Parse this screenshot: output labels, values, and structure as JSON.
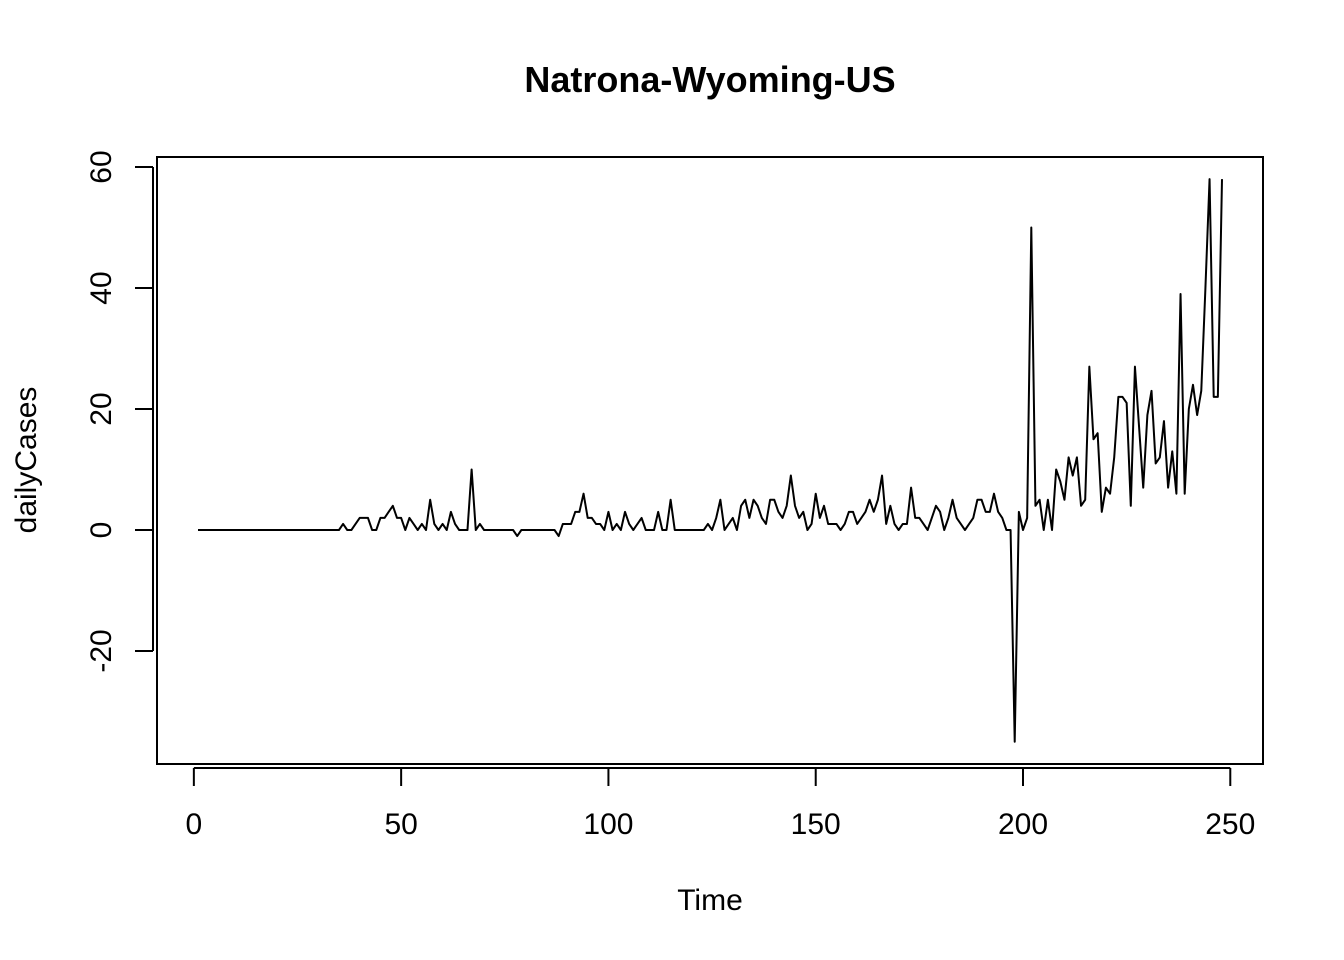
{
  "chart_data": {
    "type": "line",
    "title": "Natrona-Wyoming-US",
    "xlabel": "Time",
    "ylabel": "dailyCases",
    "xlim": [
      1,
      248
    ],
    "ylim": [
      -35,
      58
    ],
    "x_ticks": [
      0,
      50,
      100,
      150,
      200,
      250
    ],
    "y_ticks": [
      -20,
      0,
      20,
      40,
      60
    ],
    "grid": false,
    "legend": "none",
    "series": [
      {
        "start_x": 1,
        "values": [
          0,
          0,
          0,
          0,
          0,
          0,
          0,
          0,
          0,
          0,
          0,
          0,
          0,
          0,
          0,
          0,
          0,
          0,
          0,
          0,
          0,
          0,
          0,
          0,
          0,
          0,
          0,
          0,
          0,
          0,
          0,
          0,
          0,
          0,
          0,
          1,
          0,
          0,
          1,
          2,
          2,
          2,
          0,
          0,
          2,
          2,
          3,
          4,
          2,
          2,
          0,
          2,
          1,
          0,
          1,
          0,
          5,
          1,
          0,
          1,
          0,
          3,
          1,
          0,
          0,
          0,
          10,
          0,
          1,
          0,
          0,
          0,
          0,
          0,
          0,
          0,
          0,
          -1,
          0,
          0,
          0,
          0,
          0,
          0,
          0,
          0,
          0,
          -1,
          1,
          1,
          1,
          3,
          3,
          6,
          2,
          2,
          1,
          1,
          0,
          3,
          0,
          1,
          0,
          3,
          1,
          0,
          1,
          2,
          0,
          0,
          0,
          3,
          0,
          0,
          5,
          0,
          0,
          0,
          0,
          0,
          0,
          0,
          0,
          1,
          0,
          2,
          5,
          0,
          1,
          2,
          0,
          4,
          5,
          2,
          5,
          4,
          2,
          1,
          5,
          5,
          3,
          2,
          4,
          9,
          4,
          2,
          3,
          0,
          1,
          6,
          2,
          4,
          1,
          1,
          1,
          0,
          1,
          3,
          3,
          1,
          2,
          3,
          5,
          3,
          5,
          9,
          1,
          4,
          1,
          0,
          1,
          1,
          7,
          2,
          2,
          1,
          0,
          2,
          4,
          3,
          0,
          2,
          5,
          2,
          1,
          0,
          1,
          2,
          5,
          5,
          3,
          3,
          6,
          3,
          2,
          0,
          0,
          -35,
          3,
          0,
          2,
          50,
          4,
          5,
          0,
          5,
          0,
          10,
          8,
          5,
          12,
          9,
          12,
          4,
          5,
          27,
          15,
          16,
          3,
          7,
          6,
          12,
          22,
          22,
          21,
          4,
          27,
          17,
          7,
          19,
          23,
          11,
          12,
          18,
          7,
          13,
          6,
          39,
          6,
          20,
          24,
          19,
          23,
          40,
          58,
          22,
          22,
          58
        ]
      }
    ]
  }
}
